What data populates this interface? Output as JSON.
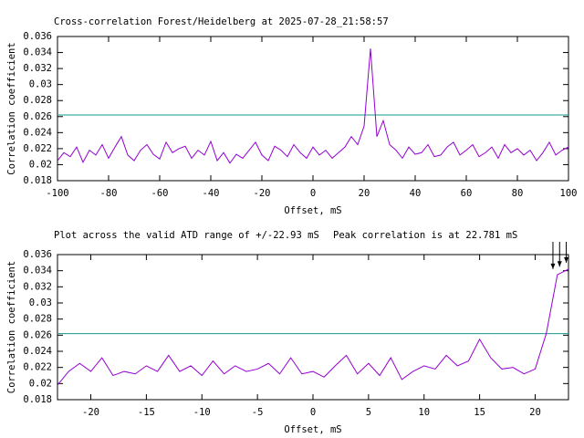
{
  "chart_data": [
    {
      "type": "line",
      "title": "Cross-correlation Forest/Heidelberg at 2025-07-28_21:58:57",
      "x_label": "Offset, mS",
      "y_label": "Correlation coefficient",
      "xlim": [
        -100,
        100
      ],
      "xticks": [
        -100,
        -80,
        -60,
        -40,
        -20,
        0,
        20,
        40,
        60,
        80,
        100
      ],
      "ylim": [
        0.018,
        0.036
      ],
      "yticks": [
        0.018,
        0.02,
        0.022,
        0.024,
        0.026,
        0.028,
        0.03,
        0.032,
        0.034,
        0.036
      ],
      "reference_lines": [
        {
          "value": 0.0262,
          "color": "#169a8c"
        }
      ],
      "x": [
        -100,
        -97.5,
        -95,
        -92.5,
        -90,
        -87.5,
        -85,
        -82.5,
        -80,
        -77.5,
        -75,
        -72.5,
        -70,
        -67.5,
        -65,
        -62.5,
        -60,
        -57.5,
        -55,
        -52.5,
        -50,
        -47.5,
        -45,
        -42.5,
        -40,
        -37.5,
        -35,
        -32.5,
        -30,
        -27.5,
        -25,
        -22.5,
        -20,
        -17.5,
        -15,
        -12.5,
        -10,
        -7.5,
        -5,
        -2.5,
        0,
        2.5,
        5,
        7.5,
        10,
        12.5,
        15,
        17.5,
        20,
        22.5,
        25,
        27.5,
        30,
        32.5,
        35,
        37.5,
        40,
        42.5,
        45,
        47.5,
        50,
        52.5,
        55,
        57.5,
        60,
        62.5,
        65,
        67.5,
        70,
        72.5,
        75,
        77.5,
        80,
        82.5,
        85,
        87.5,
        90,
        92.5,
        95,
        97.5,
        100
      ],
      "series": [
        {
          "color": "#9400d3",
          "values": [
            0.0205,
            0.0215,
            0.021,
            0.0222,
            0.0203,
            0.0218,
            0.0212,
            0.0225,
            0.0208,
            0.0222,
            0.0235,
            0.0212,
            0.0205,
            0.0218,
            0.0225,
            0.0213,
            0.0207,
            0.0228,
            0.0215,
            0.022,
            0.0223,
            0.0208,
            0.0218,
            0.0212,
            0.0229,
            0.0205,
            0.0215,
            0.0202,
            0.0213,
            0.0208,
            0.0218,
            0.0228,
            0.0212,
            0.0205,
            0.0223,
            0.0218,
            0.021,
            0.0225,
            0.0215,
            0.0208,
            0.0222,
            0.0212,
            0.0218,
            0.0208,
            0.0215,
            0.0222,
            0.0235,
            0.0225,
            0.0248,
            0.0345,
            0.0235,
            0.0255,
            0.0225,
            0.0218,
            0.0208,
            0.0222,
            0.0213,
            0.0215,
            0.0225,
            0.021,
            0.0212,
            0.0222,
            0.0228,
            0.0212,
            0.0218,
            0.0225,
            0.021,
            0.0215,
            0.0222,
            0.0208,
            0.0225,
            0.0215,
            0.022,
            0.0212,
            0.0218,
            0.0205,
            0.0215,
            0.0228,
            0.0212,
            0.0218,
            0.0222
          ]
        }
      ]
    },
    {
      "type": "line",
      "title": "Plot across the valid ATD range of +/-22.93 mS",
      "annotation": "Peak correlation is at 22.781 mS",
      "x_label": "Offset, mS",
      "y_label": "Correlation coefficient",
      "xlim": [
        -23,
        23
      ],
      "xticks": [
        -20,
        -15,
        -10,
        -5,
        0,
        5,
        10,
        15,
        20
      ],
      "ylim": [
        0.018,
        0.036
      ],
      "yticks": [
        0.018,
        0.02,
        0.022,
        0.024,
        0.026,
        0.028,
        0.03,
        0.032,
        0.034,
        0.036
      ],
      "reference_lines": [
        {
          "value": 0.0262,
          "color": "#169a8c"
        }
      ],
      "peak_markers": {
        "x": [
          21.6,
          22.2,
          22.8
        ],
        "y": [
          0.0342,
          0.0345,
          0.035
        ]
      },
      "x": [
        -23,
        -22,
        -21,
        -20,
        -19,
        -18,
        -17,
        -16,
        -15,
        -14,
        -13,
        -12,
        -11,
        -10,
        -9,
        -8,
        -7,
        -6,
        -5,
        -4,
        -3,
        -2,
        -1,
        0,
        1,
        2,
        3,
        4,
        5,
        6,
        7,
        8,
        9,
        10,
        11,
        12,
        13,
        14,
        15,
        16,
        17,
        18,
        19,
        20,
        21,
        22,
        23
      ],
      "series": [
        {
          "color": "#9400d3",
          "values": [
            0.0198,
            0.0215,
            0.0225,
            0.0215,
            0.0232,
            0.021,
            0.0215,
            0.0212,
            0.0222,
            0.0215,
            0.0235,
            0.0215,
            0.0222,
            0.021,
            0.0228,
            0.0212,
            0.0222,
            0.0215,
            0.0218,
            0.0225,
            0.0212,
            0.0232,
            0.0212,
            0.0215,
            0.0208,
            0.0222,
            0.0235,
            0.0212,
            0.0225,
            0.021,
            0.0232,
            0.0205,
            0.0215,
            0.0222,
            0.0218,
            0.0235,
            0.0222,
            0.0228,
            0.0255,
            0.0232,
            0.0218,
            0.022,
            0.0212,
            0.0218,
            0.0262,
            0.0335,
            0.0342
          ]
        }
      ]
    }
  ]
}
